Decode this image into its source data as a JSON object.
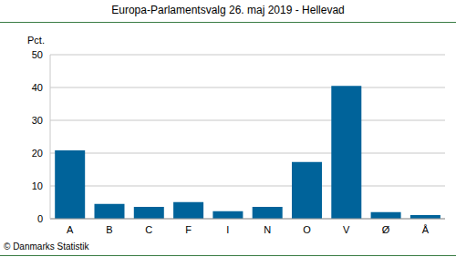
{
  "chart_data": {
    "type": "bar",
    "title": "Europa-Parlamentsvalg 26. maj 2019 - Hellevad",
    "y_label": "Pct.",
    "source": "© Danmarks Statistik",
    "categories": [
      "A",
      "B",
      "C",
      "F",
      "I",
      "N",
      "O",
      "V",
      "Ø",
      "Å"
    ],
    "values": [
      20.8,
      4.5,
      3.6,
      5.1,
      2.3,
      3.6,
      17.3,
      40.5,
      2.0,
      1.1
    ],
    "color": "#00639a",
    "ylim": [
      0,
      50
    ],
    "yticks": [
      0,
      10,
      20,
      30,
      40,
      50
    ],
    "grid": true
  }
}
